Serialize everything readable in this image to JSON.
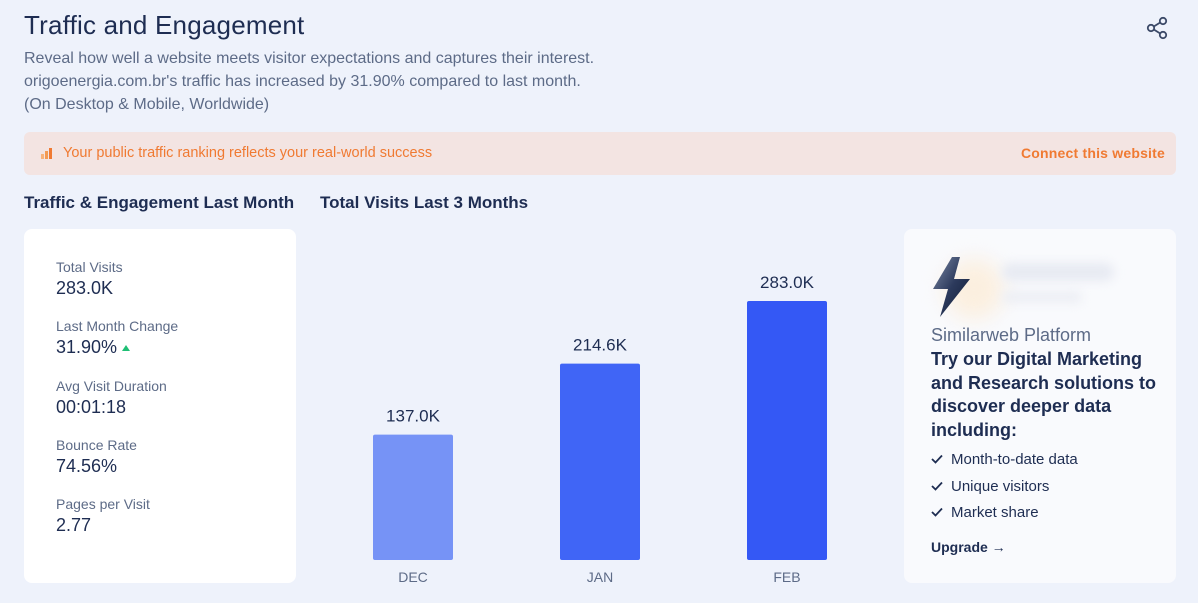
{
  "header": {
    "title": "Traffic and Engagement",
    "description_line1": "Reveal how well a website meets visitor expectations and captures their interest.",
    "description_line2": "origoenergia.com.br's traffic has increased by 31.90% compared to last month.",
    "description_line3": "(On Desktop & Mobile, Worldwide)",
    "share_icon": "share-icon"
  },
  "banner": {
    "text": "Your public traffic ranking reflects your real-world success",
    "link": "Connect this website",
    "color": "#f07a32",
    "icon": "bar-chart-icon"
  },
  "engagement": {
    "section_title": "Traffic & Engagement Last Month",
    "metrics": [
      {
        "label": "Total Visits",
        "value": "283.0K"
      },
      {
        "label": "Last Month Change",
        "value": "31.90%"
      },
      {
        "label": "Avg Visit Duration",
        "value": "00:01:18"
      },
      {
        "label": "Bounce Rate",
        "value": "74.56%"
      },
      {
        "label": "Pages per Visit",
        "value": "2.77"
      }
    ]
  },
  "visits": {
    "section_title": "Total Visits Last 3 Months"
  },
  "chart_data": {
    "type": "bar",
    "categories": [
      "DEC",
      "JAN",
      "FEB"
    ],
    "values": [
      137.0,
      214.6,
      283.0
    ],
    "labels": [
      "137.0K",
      "214.6K",
      "283.0K"
    ],
    "colors": [
      "#7693f6",
      "#4065f6",
      "#3458f5"
    ],
    "ylim": [
      0,
      283.0
    ],
    "grid": false
  },
  "promo": {
    "platform": "Similarweb Platform",
    "headline": "Try our Digital Marketing and Research solutions to discover deeper data including:",
    "items": [
      "Month-to-date data",
      "Unique visitors",
      "Market share"
    ],
    "upgrade": "Upgrade →",
    "icon": "lightning-bolt-icon"
  }
}
